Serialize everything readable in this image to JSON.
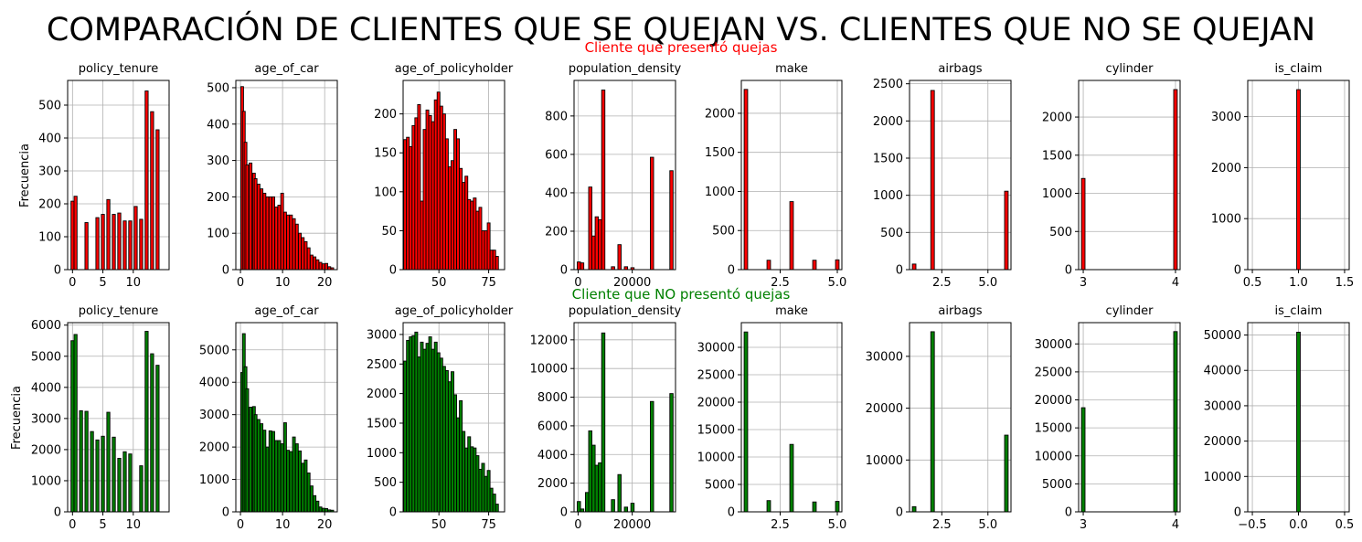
{
  "figure": {
    "suptitle": "COMPARACIÓN DE CLIENTES QUE SE QUEJAN VS. CLIENTES QUE NO SE QUEJAN",
    "row_titles": [
      {
        "text": "Cliente que presentó quejas",
        "color": "#ff0000"
      },
      {
        "text": "Cliente que NO presentó quejas",
        "color": "#008000"
      }
    ],
    "ylabel": "Frecuencia",
    "colors": {
      "complain": "#ff0000",
      "no_complain": "#008000",
      "edge": "#000000",
      "grid": "#b0b0b0"
    }
  },
  "chart_data": [
    {
      "type": "bar",
      "group": "Cliente que presentó quejas",
      "title": "policy_tenure",
      "xlim": [
        -0.8,
        15.9
      ],
      "ylim": [
        0,
        575
      ],
      "xticks": [
        0,
        5,
        10
      ],
      "yticks": [
        0,
        100,
        200,
        300,
        400,
        500
      ],
      "x": [
        0,
        0.5,
        1.4,
        2.3,
        3.2,
        4.1,
        5.0,
        5.9,
        6.8,
        7.7,
        8.6,
        9.5,
        10.4,
        11.3,
        12.2,
        13.1,
        14.0
      ],
      "values": [
        208,
        223,
        0,
        143,
        0,
        158,
        168,
        213,
        168,
        172,
        148,
        148,
        192,
        153,
        543,
        480,
        425
      ]
    },
    {
      "type": "bar",
      "group": "Cliente que presentó quejas",
      "title": "age_of_car",
      "xlim": [
        -1.1,
        23
      ],
      "ylim": [
        0,
        520
      ],
      "xticks": [
        0,
        10,
        20
      ],
      "yticks": [
        0,
        100,
        200,
        300,
        400,
        500
      ],
      "x": [
        0.4,
        0.8,
        1.2,
        1.6,
        2.4,
        3.2,
        3.6,
        4.3,
        5.0,
        5.7,
        6.4,
        7.1,
        7.8,
        8.5,
        9.2,
        9.9,
        10.6,
        11.3,
        12.0,
        12.7,
        13.4,
        14.1,
        14.8,
        15.5,
        16.2,
        16.9,
        17.6,
        18.3,
        19.0,
        19.7,
        20.4,
        21.1,
        21.8
      ],
      "values": [
        503,
        435,
        350,
        288,
        293,
        265,
        250,
        235,
        222,
        210,
        200,
        200,
        200,
        172,
        177,
        210,
        158,
        150,
        150,
        140,
        125,
        100,
        88,
        77,
        60,
        40,
        35,
        27,
        20,
        16,
        17,
        8,
        5
      ]
    },
    {
      "type": "bar",
      "group": "Cliente que presentó quejas",
      "title": "age_of_policyholder",
      "xlim": [
        32,
        83
      ],
      "ylim": [
        0,
        243
      ],
      "xticks": [
        50,
        75
      ],
      "yticks": [
        0,
        50,
        100,
        150,
        200
      ],
      "x": [
        33,
        34.4,
        35.8,
        37.2,
        38.6,
        40,
        41.4,
        42.8,
        44.2,
        45.6,
        47,
        48.4,
        49.8,
        51.2,
        52.6,
        54,
        55.4,
        56.8,
        58.2,
        59.6,
        61,
        62.4,
        63.8,
        65.2,
        66.6,
        68,
        69.4,
        70.8,
        72.2,
        73.6,
        75,
        76.4,
        77.8,
        79.2
      ],
      "values": [
        167,
        170,
        158,
        185,
        195,
        212,
        88,
        180,
        205,
        198,
        190,
        218,
        228,
        210,
        200,
        168,
        132,
        140,
        180,
        168,
        130,
        112,
        120,
        90,
        88,
        92,
        75,
        80,
        50,
        50,
        60,
        25,
        25,
        17
      ]
    },
    {
      "type": "bar",
      "group": "Cliente que presentó quejas",
      "title": "population_density",
      "xlim": [
        -1500,
        36000
      ],
      "ylim": [
        0,
        985
      ],
      "xticks": [
        0,
        20000
      ],
      "yticks": [
        0,
        200,
        400,
        600,
        800
      ],
      "x": [
        290,
        1500,
        3300,
        4500,
        5700,
        6900,
        8100,
        9300,
        10500,
        12900,
        15300,
        17700,
        20100,
        27300,
        34500
      ],
      "values": [
        40,
        35,
        0,
        430,
        175,
        275,
        260,
        935,
        0,
        15,
        130,
        15,
        10,
        585,
        515
      ]
    },
    {
      "type": "bar",
      "group": "Cliente que presentó quejas",
      "title": "make",
      "xlim": [
        0.8,
        5.2
      ],
      "ylim": [
        0,
        2420
      ],
      "xticks": [
        2.5,
        5.0
      ],
      "xtick_labels": [
        "2.5",
        "5.0"
      ],
      "yticks": [
        0,
        500,
        1000,
        1500,
        2000
      ],
      "x": [
        1,
        2,
        3,
        4,
        5
      ],
      "values": [
        2305,
        120,
        870,
        120,
        125
      ]
    },
    {
      "type": "bar",
      "group": "Cliente que presentó quejas",
      "title": "airbags",
      "xlim": [
        0.75,
        6.25
      ],
      "ylim": [
        0,
        2545
      ],
      "xticks": [
        2.5,
        5.0
      ],
      "xtick_labels": [
        "2.5",
        "5.0"
      ],
      "yticks": [
        0,
        500,
        1000,
        1500,
        2000,
        2500
      ],
      "x": [
        1,
        2,
        6
      ],
      "values": [
        75,
        2410,
        1055
      ]
    },
    {
      "type": "bar",
      "group": "Cliente que presentó quejas",
      "title": "cylinder",
      "xlim": [
        2.95,
        4.05
      ],
      "ylim": [
        0,
        2480
      ],
      "xticks": [
        3,
        4
      ],
      "yticks": [
        0,
        500,
        1000,
        1500,
        2000
      ],
      "x": [
        3,
        4
      ],
      "values": [
        1195,
        2360
      ]
    },
    {
      "type": "bar",
      "group": "Cliente que presentó quejas",
      "title": "is_claim",
      "xlim": [
        0.45,
        1.55
      ],
      "ylim": [
        0,
        3710
      ],
      "xticks": [
        0.5,
        1.0,
        1.5
      ],
      "xtick_labels": [
        "0.5",
        "1.0",
        "1.5"
      ],
      "yticks": [
        0,
        1000,
        2000,
        3000
      ],
      "x": [
        1
      ],
      "values": [
        3530
      ]
    },
    {
      "type": "bar",
      "group": "Cliente que NO presentó quejas",
      "title": "policy_tenure",
      "xlim": [
        -0.8,
        15.9
      ],
      "ylim": [
        0,
        6080
      ],
      "xticks": [
        0,
        5,
        10
      ],
      "yticks": [
        0,
        1000,
        2000,
        3000,
        4000,
        5000,
        6000
      ],
      "x": [
        0,
        0.5,
        1.4,
        2.3,
        3.2,
        4.1,
        5.0,
        5.9,
        6.8,
        7.7,
        8.6,
        9.5,
        10.4,
        11.3,
        12.2,
        13.1,
        14.0
      ],
      "values": [
        5500,
        5700,
        3250,
        3230,
        2580,
        2310,
        2430,
        3200,
        2400,
        1720,
        1930,
        1860,
        0,
        1480,
        5800,
        5080,
        4710
      ]
    },
    {
      "type": "bar",
      "group": "Cliente que NO presentó quejas",
      "title": "age_of_car",
      "xlim": [
        -1.1,
        23
      ],
      "ylim": [
        0,
        5840
      ],
      "xticks": [
        0,
        10,
        20
      ],
      "yticks": [
        0,
        1000,
        2000,
        3000,
        4000,
        5000
      ],
      "x": [
        0.4,
        0.8,
        1.2,
        1.6,
        2.4,
        3.2,
        3.6,
        4.3,
        5.0,
        5.7,
        6.4,
        7.1,
        7.8,
        8.5,
        9.2,
        9.9,
        10.6,
        11.3,
        12.0,
        12.7,
        13.4,
        14.1,
        14.8,
        15.5,
        16.2,
        16.9,
        17.6,
        18.3,
        19.0,
        19.7,
        20.4,
        21.1,
        21.8
      ],
      "values": [
        4300,
        5500,
        4480,
        3800,
        3230,
        3250,
        3000,
        2850,
        2720,
        2520,
        2000,
        2500,
        2480,
        2200,
        2200,
        2100,
        2750,
        1900,
        1860,
        2310,
        2100,
        1880,
        1500,
        1600,
        1200,
        800,
        500,
        330,
        150,
        110,
        100,
        60,
        50
      ]
    },
    {
      "type": "bar",
      "group": "Cliente que NO presentó quejas",
      "title": "age_of_policyholder",
      "xlim": [
        32,
        83
      ],
      "ylim": [
        0,
        3200
      ],
      "xticks": [
        50,
        75
      ],
      "yticks": [
        0,
        500,
        1000,
        1500,
        2000,
        2500,
        3000
      ],
      "x": [
        33,
        34.4,
        35.8,
        37.2,
        38.6,
        40,
        41.4,
        42.8,
        44.2,
        45.6,
        47,
        48.4,
        49.8,
        51.2,
        52.6,
        54,
        55.4,
        56.8,
        58.2,
        59.6,
        61,
        62.4,
        63.8,
        65.2,
        66.6,
        68,
        69.4,
        70.8,
        72.2,
        73.6,
        75,
        76.4,
        77.8,
        79.2
      ],
      "values": [
        2550,
        2900,
        2960,
        2980,
        3040,
        2620,
        2870,
        2750,
        2850,
        2960,
        2750,
        2870,
        2690,
        2600,
        2460,
        2390,
        2200,
        2370,
        1980,
        1590,
        1880,
        1360,
        1080,
        1270,
        1100,
        1080,
        950,
        720,
        820,
        600,
        700,
        400,
        300,
        130
      ]
    },
    {
      "type": "bar",
      "group": "Cliente que NO presentó quejas",
      "title": "population_density",
      "xlim": [
        -1500,
        36000
      ],
      "ylim": [
        0,
        13200
      ],
      "xticks": [
        0,
        20000
      ],
      "yticks": [
        0,
        2000,
        4000,
        6000,
        8000,
        10000,
        12000
      ],
      "x": [
        290,
        1500,
        3300,
        4500,
        5700,
        6900,
        8100,
        9300,
        10500,
        12900,
        15300,
        17700,
        20100,
        27300,
        34500
      ],
      "values": [
        720,
        200,
        1350,
        5650,
        4650,
        3250,
        3420,
        12480,
        0,
        850,
        2600,
        330,
        600,
        7700,
        8250
      ]
    },
    {
      "type": "bar",
      "group": "Cliente que NO presentó quejas",
      "title": "make",
      "xlim": [
        0.8,
        5.2
      ],
      "ylim": [
        0,
        34500
      ],
      "xticks": [
        2.5,
        5.0
      ],
      "xtick_labels": [
        "2.5",
        "5.0"
      ],
      "yticks": [
        0,
        5000,
        10000,
        15000,
        20000,
        25000,
        30000
      ],
      "x": [
        1,
        2,
        3,
        4,
        5
      ],
      "values": [
        32800,
        2050,
        12300,
        1800,
        1900
      ]
    },
    {
      "type": "bar",
      "group": "Cliente que NO presentó quejas",
      "title": "airbags",
      "xlim": [
        0.75,
        6.25
      ],
      "ylim": [
        0,
        36500
      ],
      "xticks": [
        2.5,
        5.0
      ],
      "xtick_labels": [
        "2.5",
        "5.0"
      ],
      "yticks": [
        0,
        10000,
        20000,
        30000
      ],
      "x": [
        1,
        2,
        6
      ],
      "values": [
        1000,
        34750,
        14800
      ]
    },
    {
      "type": "bar",
      "group": "Cliente que NO presentó quejas",
      "title": "cylinder",
      "xlim": [
        2.95,
        4.05
      ],
      "ylim": [
        0,
        33800
      ],
      "xticks": [
        3,
        4
      ],
      "yticks": [
        0,
        5000,
        10000,
        15000,
        20000,
        25000,
        30000
      ],
      "x": [
        3,
        4
      ],
      "values": [
        18600,
        32200
      ]
    },
    {
      "type": "bar",
      "group": "Cliente que NO presentó quejas",
      "title": "is_claim",
      "xlim": [
        -0.55,
        0.55
      ],
      "ylim": [
        0,
        53500
      ],
      "xticks": [
        -0.5,
        0.0,
        0.5
      ],
      "xtick_labels": [
        "−0.5",
        "0.0",
        "0.5"
      ],
      "yticks": [
        0,
        10000,
        20000,
        30000,
        40000,
        50000
      ],
      "x": [
        0
      ],
      "values": [
        50800
      ]
    }
  ]
}
